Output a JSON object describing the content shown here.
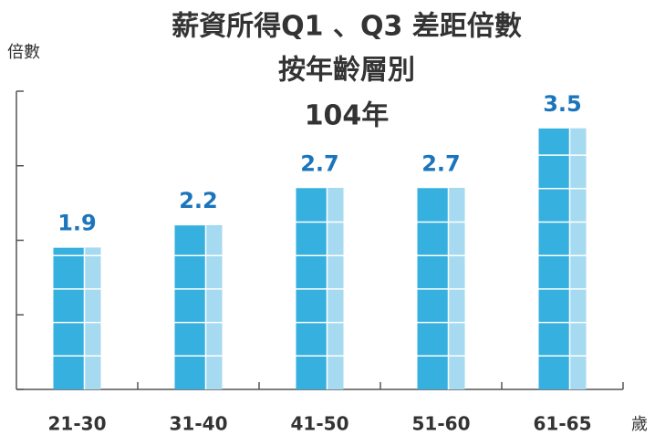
{
  "chart_data": {
    "type": "bar",
    "title": [
      "薪資所得Q1 、Q3 差距倍數",
      "按年齡層別",
      "104年"
    ],
    "y_label": "倍數",
    "x_label": "歲",
    "categories": [
      "21-30",
      "31-40",
      "41-50",
      "51-60",
      "61-65"
    ],
    "values": [
      1.9,
      2.2,
      2.7,
      2.7,
      3.5
    ],
    "color": "#36b0df",
    "highlight_color": "#a5daf0",
    "label_color": "#1b75bc",
    "ylim": [
      0,
      4
    ],
    "yticks": [
      0,
      1,
      2,
      3,
      4
    ]
  }
}
